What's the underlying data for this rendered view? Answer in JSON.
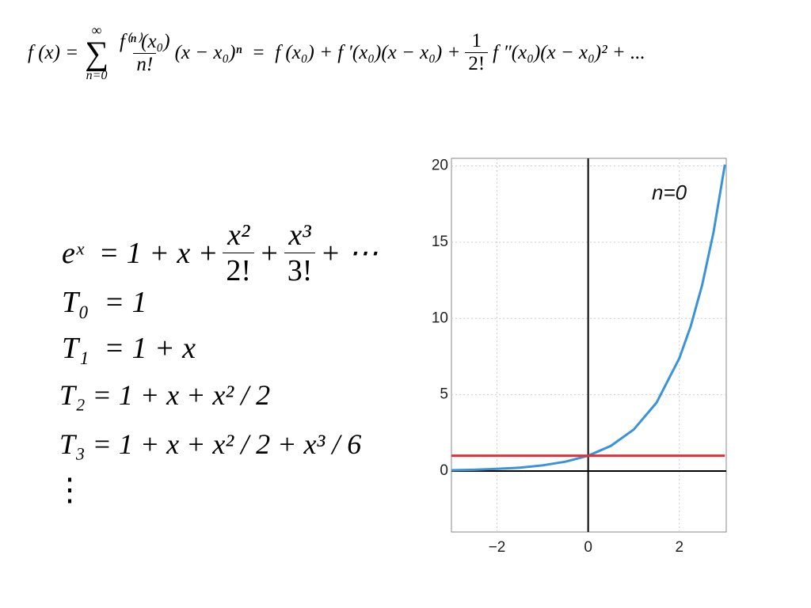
{
  "formulas": {
    "taylor": {
      "lhs": "f (x) =",
      "sum_top": "∞",
      "sum_sign": "∑",
      "sum_bottom": "n=0",
      "frac1_num": "f⁽ⁿ⁾(x₀)",
      "frac1_den": "n!",
      "middle": "(x − x₀)ⁿ  =  f (x₀) + f ′(x₀)(x − x₀) +",
      "frac2_num": "1",
      "frac2_den": "2!",
      "tail": "f ″(x₀)(x − x₀)² + ..."
    },
    "exp": {
      "lhs": "eˣ  = 1 + x +",
      "frac1_num": "x²",
      "frac1_den": "2!",
      "plus": "+",
      "frac2_num": "x³",
      "frac2_den": "3!",
      "tail": "+ ⋯"
    },
    "t0": "T₀  = 1",
    "t1": "T₁  = 1 + x",
    "t2": "T₂ = 1 + x + x² / 2",
    "t3": "T₃ = 1 + x + x² / 2 + x³ / 6",
    "dots": "⋮"
  },
  "chart_data": {
    "type": "line",
    "annotation": "n=0",
    "x": [
      -3,
      -2.5,
      -2,
      -1.5,
      -1,
      -0.5,
      0,
      0.5,
      1,
      1.5,
      2,
      2.25,
      2.5,
      2.75,
      3
    ],
    "series": [
      {
        "color": "#3a93d6",
        "values": [
          0.05,
          0.08,
          0.14,
          0.22,
          0.37,
          0.61,
          1,
          1.65,
          2.72,
          4.48,
          7.39,
          9.49,
          12.18,
          15.64,
          20.09
        ]
      },
      {
        "color": "#e0303c",
        "values": [
          1,
          1,
          1,
          1,
          1,
          1,
          1,
          1,
          1,
          1,
          1,
          1,
          1,
          1,
          1
        ]
      }
    ],
    "xlim": [
      -3,
      3.03
    ],
    "ylim": [
      -4,
      20.5
    ],
    "xticks": [
      {
        "value": -2,
        "label": "−2"
      },
      0,
      2
    ],
    "yticks": [
      0,
      5,
      10,
      15,
      20
    ],
    "grid": true
  }
}
